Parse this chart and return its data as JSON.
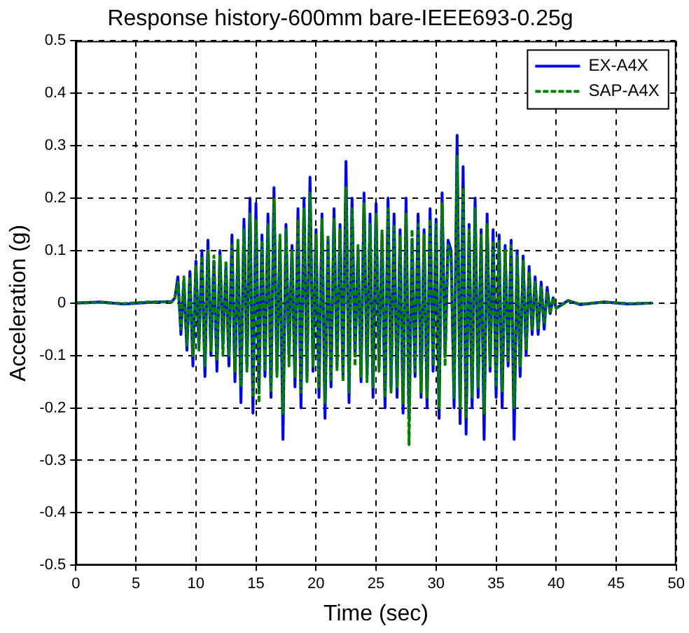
{
  "chart_data": {
    "type": "line",
    "title": "Response history-600mm bare-IEEE693-0.25g",
    "xlabel": "Time (sec)",
    "ylabel": "Acceleration (g)",
    "x": [
      0,
      2,
      4,
      6,
      8,
      8.25,
      8.5,
      8.75,
      9,
      9.25,
      9.5,
      9.75,
      10,
      10.25,
      10.5,
      10.75,
      11,
      11.25,
      11.5,
      11.75,
      12,
      12.25,
      12.5,
      12.75,
      13,
      13.25,
      13.5,
      13.75,
      14,
      14.25,
      14.5,
      14.75,
      15,
      15.25,
      15.5,
      15.75,
      16,
      16.25,
      16.5,
      16.75,
      17,
      17.25,
      17.5,
      17.75,
      18,
      18.25,
      18.5,
      18.75,
      19,
      19.25,
      19.5,
      19.75,
      20,
      20.25,
      20.5,
      20.75,
      21,
      21.25,
      21.5,
      21.75,
      22,
      22.25,
      22.5,
      22.75,
      23,
      23.25,
      23.5,
      23.75,
      24,
      24.25,
      24.5,
      24.75,
      25,
      25.25,
      25.5,
      25.75,
      26,
      26.25,
      26.5,
      26.75,
      27,
      27.25,
      27.5,
      27.75,
      28,
      28.25,
      28.5,
      28.75,
      29,
      29.25,
      29.5,
      29.75,
      30,
      30.25,
      30.5,
      30.75,
      31,
      31.25,
      31.5,
      31.75,
      32,
      32.25,
      32.5,
      32.75,
      33,
      33.25,
      33.5,
      33.75,
      34,
      34.25,
      34.5,
      34.75,
      35,
      35.25,
      35.5,
      35.75,
      36,
      36.25,
      36.5,
      36.75,
      37,
      37.25,
      37.5,
      37.75,
      38,
      38.25,
      38.5,
      38.75,
      39,
      39.25,
      39.5,
      39.75,
      40,
      41,
      42,
      44,
      46,
      48
    ],
    "series": [
      {
        "name": "EX-A4X",
        "color": "#0000ff",
        "line_style": "solid",
        "values": [
          0,
          0.002,
          -0.002,
          0.001,
          0.003,
          0.01,
          0.05,
          -0.06,
          0.04,
          -0.09,
          0.06,
          -0.12,
          0.08,
          -0.08,
          0.1,
          -0.14,
          0.12,
          -0.1,
          0.08,
          -0.13,
          0.1,
          -0.08,
          0.07,
          -0.12,
          0.13,
          -0.15,
          0.11,
          -0.19,
          0.16,
          -0.12,
          0.2,
          -0.21,
          0.19,
          -0.16,
          0.13,
          -0.14,
          0.17,
          -0.18,
          0.22,
          -0.13,
          0.12,
          -0.26,
          0.15,
          -0.1,
          0.11,
          -0.16,
          0.18,
          -0.2,
          0.2,
          -0.14,
          0.24,
          -0.13,
          0.14,
          -0.18,
          0.17,
          -0.22,
          0.12,
          -0.16,
          0.18,
          -0.12,
          0.15,
          -0.14,
          0.27,
          -0.19,
          0.2,
          -0.1,
          0.1,
          -0.15,
          0.21,
          -0.14,
          0.17,
          -0.18,
          0.19,
          -0.12,
          0.13,
          -0.2,
          0.2,
          -0.16,
          0.17,
          -0.18,
          0.14,
          -0.21,
          0.2,
          -0.22,
          0.12,
          -0.14,
          0.17,
          -0.18,
          0.14,
          -0.2,
          0.18,
          -0.13,
          0.16,
          -0.22,
          0.21,
          -0.1,
          0.12,
          0.1,
          -0.2,
          0.32,
          -0.23,
          0.26,
          -0.25,
          0.15,
          -0.2,
          0.2,
          -0.18,
          0.14,
          -0.26,
          0.17,
          -0.13,
          0.14,
          -0.18,
          0.13,
          -0.2,
          0.11,
          -0.12,
          0.12,
          -0.26,
          0.1,
          -0.14,
          0.09,
          -0.1,
          0.07,
          -0.06,
          0.05,
          -0.06,
          0.04,
          -0.05,
          0.03,
          -0.02,
          0.01,
          -0.01,
          0.005,
          -0.003,
          0.002,
          -0.002,
          0
        ]
      },
      {
        "name": "SAP-A4X",
        "color": "#008000",
        "line_style": "dashed",
        "values": [
          0,
          0.001,
          -0.001,
          0.002,
          0.002,
          0.01,
          0.04,
          -0.05,
          0.05,
          -0.08,
          0.05,
          -0.1,
          0.07,
          -0.09,
          0.09,
          -0.12,
          0.1,
          -0.09,
          0.09,
          -0.11,
          0.09,
          -0.1,
          0.08,
          -0.1,
          0.11,
          -0.13,
          0.12,
          -0.16,
          0.14,
          -0.13,
          0.17,
          -0.18,
          0.16,
          -0.19,
          0.12,
          -0.13,
          0.15,
          -0.17,
          0.2,
          -0.14,
          0.13,
          -0.21,
          0.14,
          -0.12,
          0.1,
          -0.14,
          0.16,
          -0.17,
          0.18,
          -0.15,
          0.21,
          -0.12,
          0.13,
          -0.16,
          0.16,
          -0.19,
          0.13,
          -0.15,
          0.16,
          -0.13,
          0.14,
          -0.15,
          0.22,
          -0.17,
          0.18,
          -0.12,
          0.11,
          -0.14,
          0.19,
          -0.15,
          0.15,
          -0.16,
          0.17,
          -0.13,
          0.14,
          -0.18,
          0.18,
          -0.17,
          0.15,
          -0.16,
          0.13,
          -0.19,
          0.17,
          -0.27,
          0.14,
          -0.13,
          0.15,
          -0.17,
          0.13,
          -0.18,
          0.16,
          -0.12,
          0.15,
          -0.2,
          0.19,
          -0.12,
          0.11,
          0.09,
          -0.18,
          0.28,
          -0.2,
          0.22,
          -0.22,
          0.14,
          -0.18,
          0.18,
          -0.16,
          0.13,
          -0.21,
          0.15,
          -0.12,
          0.12,
          -0.16,
          0.12,
          -0.17,
          0.1,
          -0.11,
          0.11,
          -0.2,
          0.09,
          -0.12,
          0.08,
          -0.09,
          0.06,
          -0.05,
          0.04,
          -0.05,
          0.03,
          -0.04,
          0.02,
          -0.02,
          0.01,
          -0.01,
          0.004,
          -0.002,
          0.002,
          -0.001,
          0
        ]
      }
    ],
    "xlim": [
      0,
      50
    ],
    "xticks": [
      0,
      5,
      10,
      15,
      20,
      25,
      30,
      35,
      40,
      45,
      50
    ],
    "ylim": [
      -0.5,
      0.5
    ],
    "yticks": [
      -0.5,
      -0.4,
      -0.3,
      -0.2,
      -0.1,
      0,
      0.1,
      0.2,
      0.3,
      0.4,
      0.5
    ],
    "grid": true,
    "legend": "top right",
    "marker": "none"
  }
}
